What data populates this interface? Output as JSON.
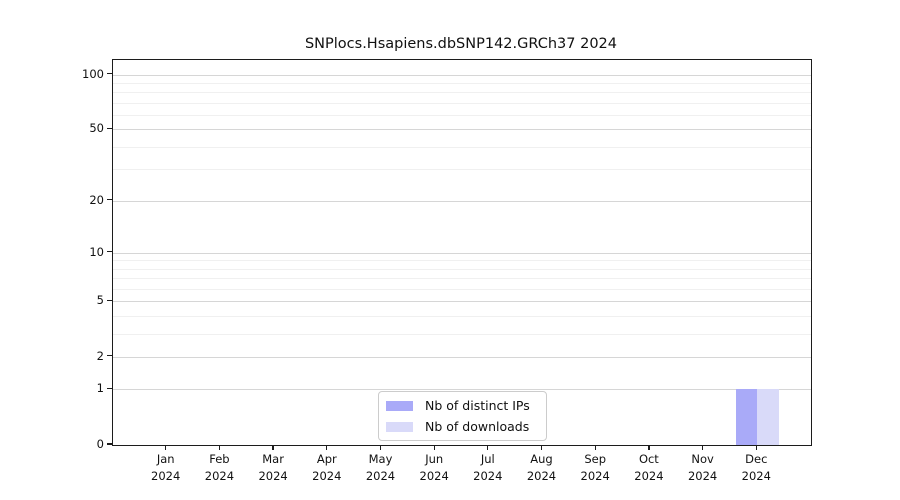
{
  "chart_data": {
    "type": "bar",
    "title": "SNPlocs.Hsapiens.dbSNP142.GRCh37 2024",
    "categories": [
      "Jan 2024",
      "Feb 2024",
      "Mar 2024",
      "Apr 2024",
      "May 2024",
      "Jun 2024",
      "Jul 2024",
      "Aug 2024",
      "Sep 2024",
      "Oct 2024",
      "Nov 2024",
      "Dec 2024"
    ],
    "series": [
      {
        "name": "Nb of distinct IPs",
        "color": "#a9aaf8",
        "values": [
          0,
          0,
          0,
          0,
          0,
          0,
          0,
          0,
          0,
          0,
          0,
          1
        ]
      },
      {
        "name": "Nb of downloads",
        "color": "#d9daf9",
        "values": [
          0,
          0,
          0,
          0,
          0,
          0,
          0,
          0,
          0,
          0,
          0,
          1
        ]
      }
    ],
    "xlabel": "",
    "ylabel": "",
    "yscale": "log1p",
    "ylim": [
      0,
      120
    ],
    "y_major_ticks": [
      0,
      1,
      2,
      5,
      10,
      20,
      50,
      100
    ],
    "y_minor_gridlines": [
      3,
      4,
      6,
      7,
      8,
      9,
      30,
      40,
      60,
      70,
      80,
      90
    ],
    "grid": "horizontal",
    "legend_position": "bottom-center"
  },
  "colors": {
    "distinct_ips": "#a9aaf8",
    "downloads": "#d9daf9",
    "grid_major": "#d6d6d6",
    "grid_minor": "#f0f0f0",
    "spine": "#1c1c1c",
    "background": "#ffffff"
  }
}
